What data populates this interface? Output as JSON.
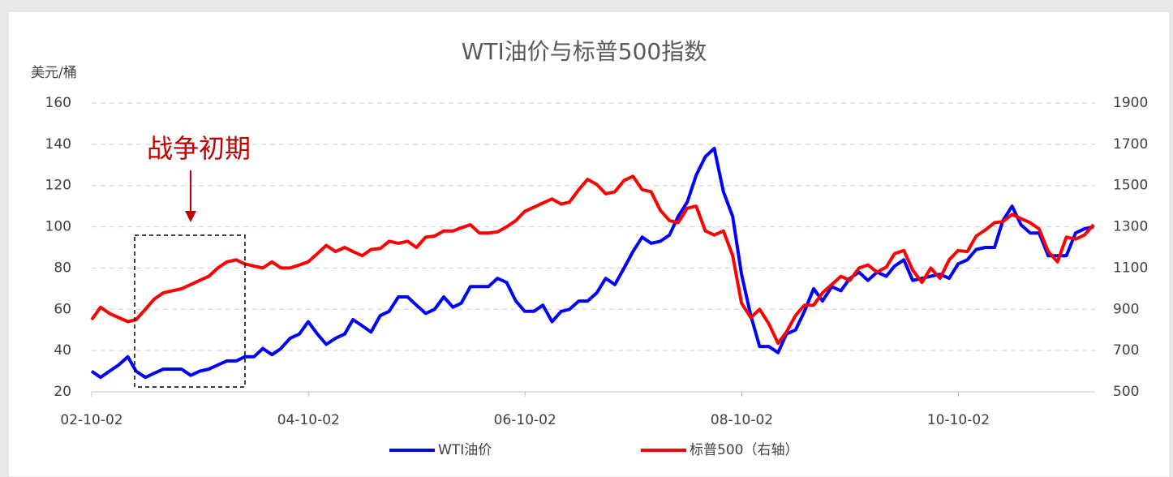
{
  "chart_data": {
    "type": "line",
    "title": "WTI油价与标普500指数",
    "ylabel": "美元/桶",
    "annotation": "战争初期",
    "x": [
      "02-10-02",
      "02-11-01",
      "02-12-01",
      "03-01-01",
      "03-02-01",
      "03-03-01",
      "03-04-01",
      "03-05-01",
      "03-06-01",
      "03-07-01",
      "03-08-01",
      "03-09-01",
      "03-10-01",
      "03-11-01",
      "03-12-01",
      "04-01-01",
      "04-02-01",
      "04-03-01",
      "04-04-01",
      "04-05-01",
      "04-06-01",
      "04-07-01",
      "04-08-01",
      "04-09-01",
      "04-10-01",
      "04-11-01",
      "04-12-01",
      "05-01-01",
      "05-02-01",
      "05-03-01",
      "05-04-01",
      "05-05-01",
      "05-06-01",
      "05-07-01",
      "05-08-01",
      "05-09-01",
      "05-10-01",
      "05-11-01",
      "05-12-01",
      "06-01-01",
      "06-02-01",
      "06-03-01",
      "06-04-01",
      "06-05-01",
      "06-06-01",
      "06-07-01",
      "06-08-01",
      "06-09-01",
      "06-10-01",
      "06-11-01",
      "06-12-01",
      "07-01-01",
      "07-02-01",
      "07-03-01",
      "07-04-01",
      "07-05-01",
      "07-06-01",
      "07-07-01",
      "07-08-01",
      "07-09-01",
      "07-10-01",
      "07-11-01",
      "07-12-01",
      "08-01-01",
      "08-02-01",
      "08-03-01",
      "08-04-01",
      "08-05-01",
      "08-06-01",
      "08-07-01",
      "08-08-01",
      "08-09-01",
      "08-10-01",
      "08-11-01",
      "08-12-01",
      "09-01-01",
      "09-02-01",
      "09-03-01",
      "09-04-01",
      "09-05-01",
      "09-06-01",
      "09-07-01",
      "09-08-01",
      "09-09-01",
      "09-10-01",
      "09-11-01",
      "09-12-01",
      "10-01-01",
      "10-02-01",
      "10-03-01",
      "10-04-01",
      "10-05-01",
      "10-06-01",
      "10-07-01",
      "10-08-01",
      "10-09-01",
      "10-10-01",
      "10-11-01",
      "10-12-01",
      "11-01-01",
      "11-02-01",
      "11-03-01",
      "11-04-01",
      "11-05-01",
      "11-06-01",
      "11-07-01",
      "11-08-01",
      "11-09-01",
      "11-10-01",
      "11-11-01",
      "11-12-01",
      "12-01-01"
    ],
    "series": [
      {
        "name": "WTI油价",
        "color": "#0000ff",
        "axis": "y",
        "values": [
          30,
          27,
          30,
          33,
          37,
          30,
          27,
          29,
          31,
          31,
          31,
          28,
          30,
          31,
          33,
          35,
          35,
          37,
          37,
          41,
          38,
          41,
          46,
          48,
          54,
          48,
          43,
          46,
          48,
          55,
          52,
          49,
          57,
          59,
          66,
          66,
          62,
          58,
          60,
          66,
          61,
          63,
          71,
          71,
          71,
          75,
          73,
          64,
          59,
          59,
          62,
          54,
          59,
          60,
          64,
          64,
          68,
          75,
          72,
          80,
          88,
          95,
          92,
          93,
          96,
          105,
          112,
          125,
          134,
          138,
          117,
          105,
          77,
          57,
          42,
          42,
          39,
          48,
          50,
          59,
          70,
          64,
          71,
          69,
          75,
          78,
          74,
          78,
          76,
          81,
          84,
          74,
          75,
          76,
          77,
          75,
          82,
          84,
          89,
          90,
          90,
          103,
          110,
          101,
          97,
          97,
          86,
          86,
          86,
          97,
          99,
          100
        ]
      },
      {
        "name": "标普500（右轴）",
        "color": "#ff0000",
        "axis": "y2",
        "values": [
          850,
          910,
          880,
          860,
          840,
          850,
          900,
          950,
          980,
          990,
          1000,
          1020,
          1040,
          1060,
          1100,
          1130,
          1140,
          1120,
          1110,
          1100,
          1130,
          1100,
          1100,
          1115,
          1130,
          1170,
          1210,
          1180,
          1200,
          1180,
          1160,
          1190,
          1195,
          1230,
          1220,
          1230,
          1200,
          1250,
          1255,
          1280,
          1280,
          1295,
          1310,
          1270,
          1270,
          1275,
          1300,
          1330,
          1375,
          1395,
          1415,
          1435,
          1410,
          1420,
          1480,
          1530,
          1505,
          1460,
          1470,
          1525,
          1545,
          1480,
          1470,
          1380,
          1330,
          1320,
          1390,
          1400,
          1280,
          1260,
          1280,
          1160,
          930,
          860,
          900,
          830,
          735,
          790,
          870,
          920,
          920,
          980,
          1020,
          1060,
          1040,
          1100,
          1115,
          1080,
          1105,
          1170,
          1185,
          1090,
          1030,
          1100,
          1050,
          1140,
          1185,
          1180,
          1255,
          1285,
          1320,
          1325,
          1360,
          1340,
          1320,
          1290,
          1180,
          1130,
          1250,
          1240,
          1260,
          1310
        ]
      }
    ],
    "xlim": [
      "02-10-02",
      "12-01-06"
    ],
    "xticks": [
      "02-10-02",
      "04-10-02",
      "06-10-02",
      "08-10-02",
      "10-10-02"
    ],
    "ylim": [
      20,
      160
    ],
    "yticks": [
      20,
      40,
      60,
      80,
      100,
      120,
      140,
      160
    ],
    "y2lim": [
      500,
      1900
    ],
    "y2ticks": [
      500,
      700,
      900,
      1100,
      1300,
      1500,
      1700,
      1900
    ],
    "grid": true,
    "legend": "bottom"
  }
}
